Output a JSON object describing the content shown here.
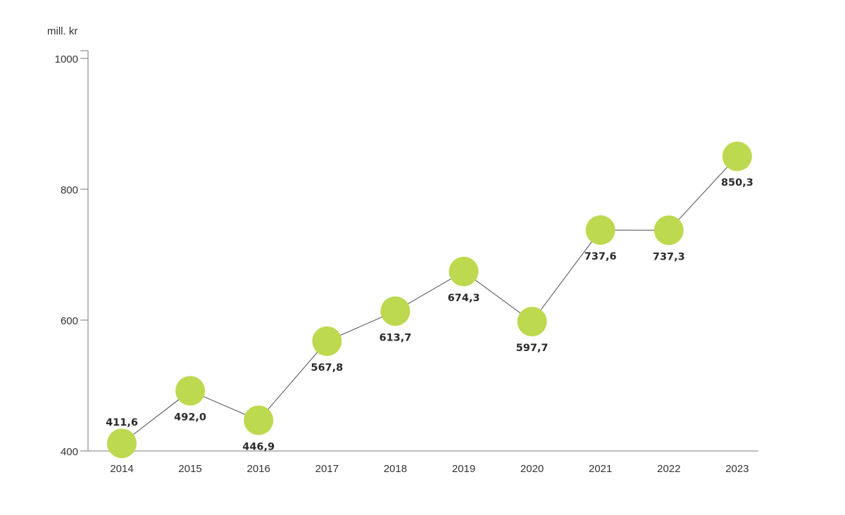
{
  "chart_data": {
    "type": "line",
    "unit_label": "mill. kr",
    "title": "",
    "xlabel": "",
    "ylabel": "",
    "categories": [
      "2014",
      "2015",
      "2016",
      "2017",
      "2018",
      "2019",
      "2020",
      "2021",
      "2022",
      "2023"
    ],
    "series": [
      {
        "values": [
          411.6,
          492.0,
          446.9,
          567.8,
          613.7,
          674.3,
          597.7,
          737.6,
          737.3,
          850.3
        ],
        "value_labels": [
          "411,6",
          "492,0",
          "446,9",
          "567,8",
          "613,7",
          "674,3",
          "597,7",
          "737,6",
          "737,3",
          "850,3"
        ],
        "label_positions": [
          "above",
          "below",
          "below",
          "below",
          "below",
          "below",
          "below",
          "below",
          "below",
          "below"
        ]
      }
    ],
    "ylim": [
      400,
      1000
    ],
    "yticks": [
      "400",
      "600",
      "800",
      "1000"
    ],
    "grid": false,
    "legend": "none",
    "colors": {
      "marker": "#bcd94f",
      "line": "#4d4d4d",
      "axis": "#7a7a7a",
      "text": "#333333"
    }
  }
}
